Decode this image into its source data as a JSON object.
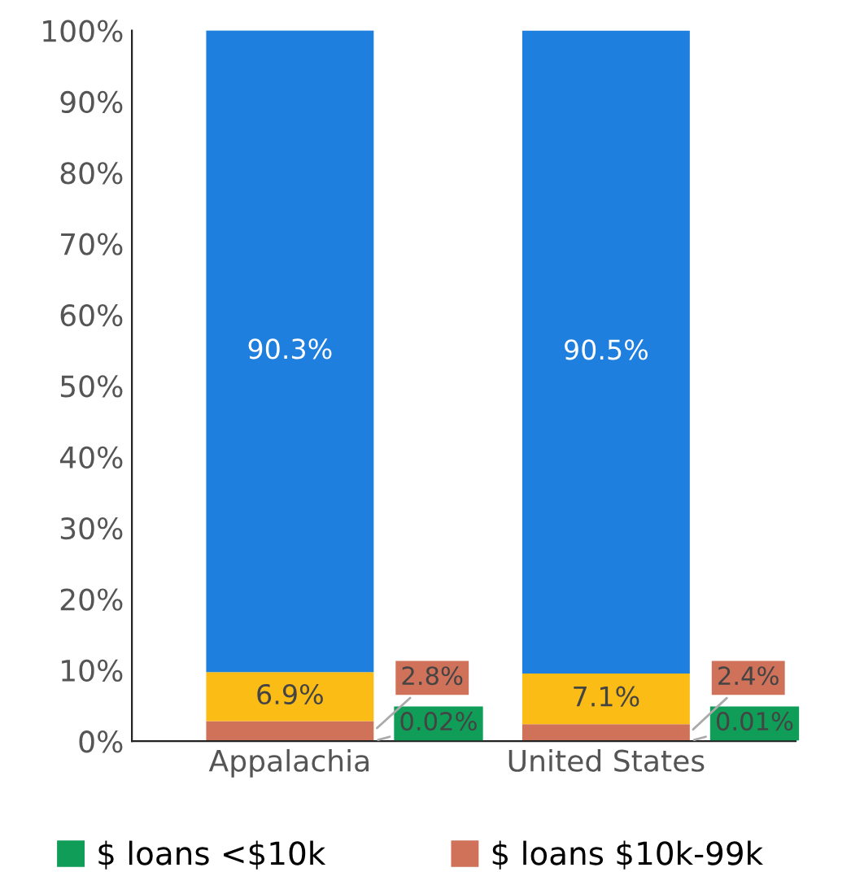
{
  "chart_data": {
    "type": "bar",
    "stacked": true,
    "categories": [
      "Appalachia",
      "United States"
    ],
    "series": [
      {
        "name": "$ loans <$10k",
        "color": "#0f9d58",
        "values": [
          0.02,
          0.01
        ],
        "value_labels": [
          "0.02%",
          "0.01%"
        ]
      },
      {
        "name": "$ loans $10k-99k",
        "color": "#d0725a",
        "values": [
          2.8,
          2.4
        ],
        "value_labels": [
          "2.8%",
          "2.4%"
        ]
      },
      {
        "color": "#fbbc16",
        "values": [
          6.9,
          7.1
        ],
        "value_labels": [
          "6.9%",
          "7.1%"
        ]
      },
      {
        "color": "#1f7fdf",
        "values": [
          90.3,
          90.5
        ],
        "value_labels": [
          "90.3%",
          "90.5%"
        ]
      }
    ],
    "ylim": [
      0,
      100
    ],
    "yticks": [
      {
        "value": 0,
        "label": "0%"
      },
      {
        "value": 10,
        "label": "10%"
      },
      {
        "value": 20,
        "label": "20%"
      },
      {
        "value": 30,
        "label": "30%"
      },
      {
        "value": 40,
        "label": "40%"
      },
      {
        "value": 50,
        "label": "50%"
      },
      {
        "value": 60,
        "label": "60%"
      },
      {
        "value": 70,
        "label": "70%"
      },
      {
        "value": 80,
        "label": "80%"
      },
      {
        "value": 90,
        "label": "90%"
      },
      {
        "value": 100,
        "label": "100%"
      }
    ],
    "grid": false,
    "legend": "bottom"
  }
}
